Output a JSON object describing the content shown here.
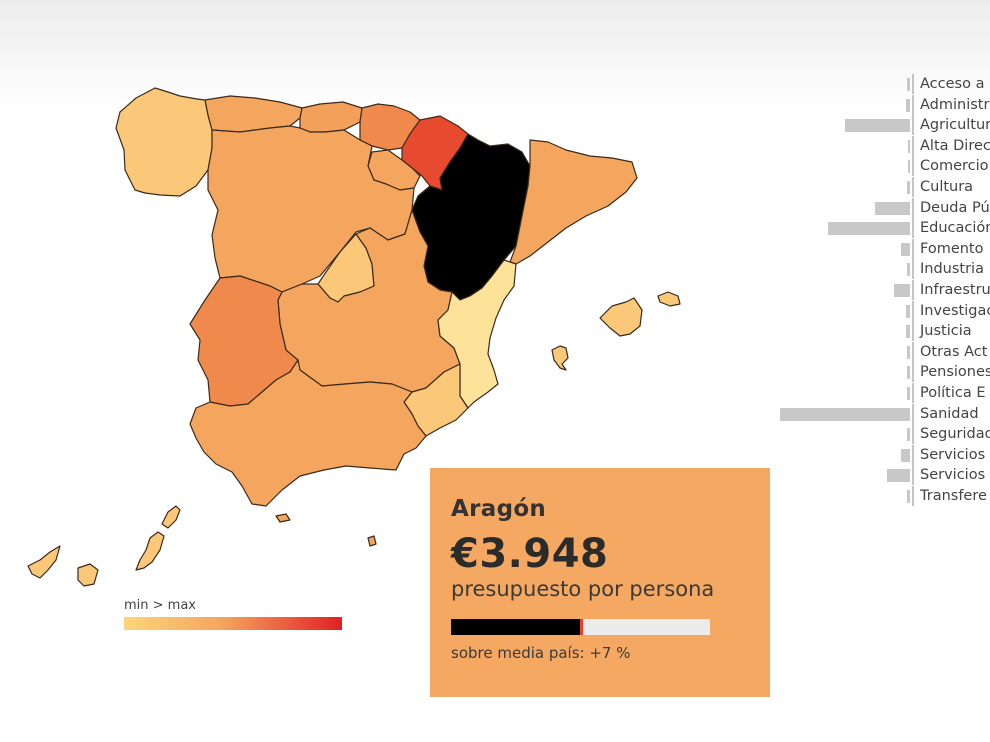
{
  "map": {
    "selected_region": "Aragón",
    "colors": {
      "min": "#fdd57a",
      "mid": "#f4a55e",
      "high": "#ef8a4c",
      "max": "#e8352d",
      "selected": "#000000",
      "card_bg": "#f5a862"
    },
    "legend": {
      "label": "min > max",
      "color_from": "#fdd57a",
      "color_to": "#e21f26"
    }
  },
  "card": {
    "region": "Aragón",
    "amount": "€3.948",
    "unit": "presupuesto por persona",
    "bar_fraction": 0.5,
    "comparison": "sobre media país: +7 %"
  },
  "categories": [
    {
      "label": "Acceso a",
      "share": 0.02
    },
    {
      "label": "Administr",
      "share": 0.03
    },
    {
      "label": "Agricultur",
      "share": 0.5
    },
    {
      "label": "Alta Direc",
      "share": 0.01
    },
    {
      "label": "Comercio",
      "share": 0.01
    },
    {
      "label": "Cultura",
      "share": 0.02
    },
    {
      "label": "Deuda Pú",
      "share": 0.27
    },
    {
      "label": "Educación",
      "share": 0.63
    },
    {
      "label": "Fomento",
      "share": 0.07
    },
    {
      "label": "Industria",
      "share": 0.02
    },
    {
      "label": "Infraestru",
      "share": 0.12
    },
    {
      "label": "Investigac",
      "share": 0.03
    },
    {
      "label": "Justicia",
      "share": 0.03
    },
    {
      "label": "Otras Act",
      "share": 0.02
    },
    {
      "label": "Pensiones",
      "share": 0.02
    },
    {
      "label": "Política E",
      "share": 0.02
    },
    {
      "label": "Sanidad",
      "share": 1.0
    },
    {
      "label": "Seguridad",
      "share": 0.02
    },
    {
      "label": "Servicios",
      "share": 0.07
    },
    {
      "label": "Servicios",
      "share": 0.18
    },
    {
      "label": "Transfere",
      "share": 0.02
    }
  ]
}
